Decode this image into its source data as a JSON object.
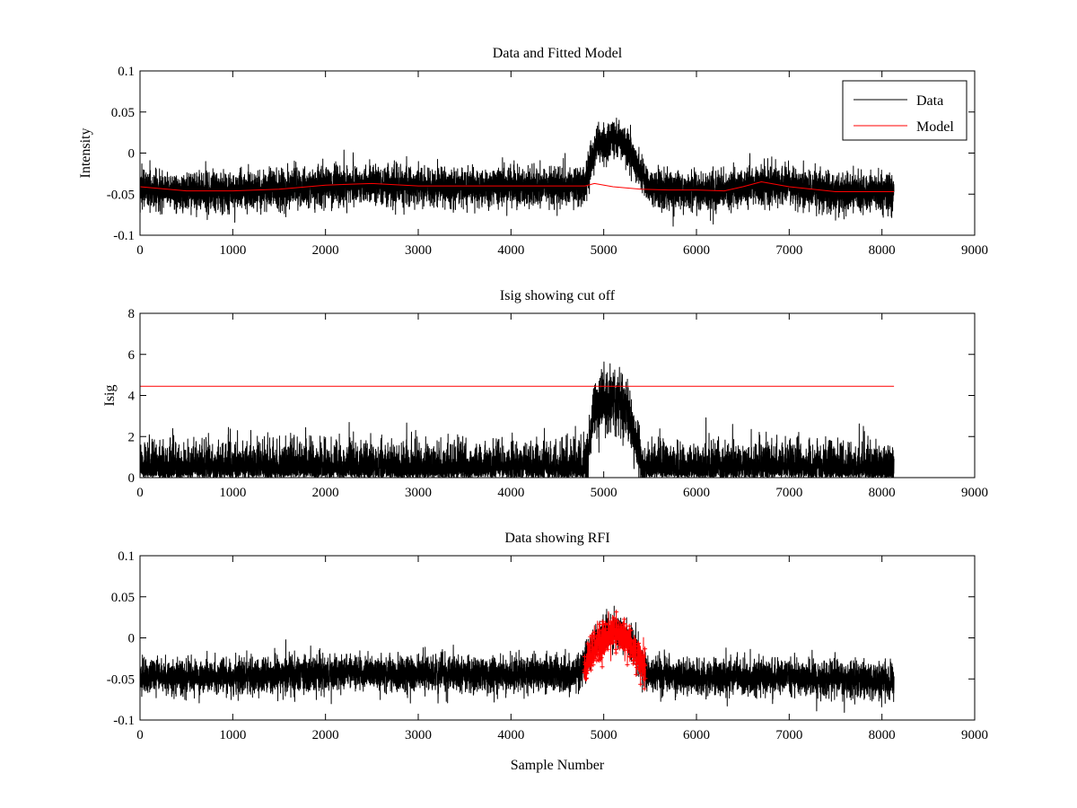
{
  "chart_data": [
    {
      "type": "line",
      "title": "Data and Fitted Model",
      "xlabel": "",
      "ylabel": "Intensity",
      "xlim": [
        0,
        9000
      ],
      "ylim": [
        -0.1,
        0.1
      ],
      "xticks": [
        0,
        1000,
        2000,
        3000,
        4000,
        5000,
        6000,
        7000,
        8000,
        9000
      ],
      "xtick_labels": [
        "0",
        "1000",
        "2000",
        "3000",
        "4000",
        "5000",
        "6000",
        "7000",
        "8000",
        "9000"
      ],
      "yticks": [
        -0.1,
        -0.05,
        0,
        0.05,
        0.1
      ],
      "ytick_labels": [
        "-0.1",
        "-0.05",
        "0",
        "0.05",
        "0.1"
      ],
      "grid": false,
      "legend": "top-right",
      "series": [
        {
          "name": "Data",
          "color": "#000000",
          "kind": "noisy-line",
          "x_range": [
            0,
            8130
          ],
          "n_points": 8130,
          "noise_sd": 0.0115,
          "baseline": {
            "x": [
              0,
              500,
              1000,
              1500,
              2000,
              2500,
              3000,
              3500,
              4000,
              4500,
              4800,
              5500,
              6000,
              6500,
              6700,
              7000,
              7500,
              8130
            ],
            "y": [
              -0.043,
              -0.047,
              -0.047,
              -0.044,
              -0.04,
              -0.038,
              -0.041,
              -0.041,
              -0.041,
              -0.041,
              -0.04,
              -0.043,
              -0.046,
              -0.044,
              -0.038,
              -0.041,
              -0.047,
              -0.047
            ]
          },
          "pulse": {
            "x": [
              4800,
              4880,
              4950,
              5050,
              5150,
              5250,
              5350,
              5450,
              5520
            ],
            "y": [
              0,
              0.04,
              0.052,
              0.056,
              0.058,
              0.05,
              0.03,
              0.01,
              0
            ]
          }
        },
        {
          "name": "Model",
          "color": "#ff0000",
          "kind": "line",
          "x": [
            0,
            500,
            1000,
            1500,
            2000,
            2500,
            3000,
            3500,
            4000,
            4500,
            4800,
            4900,
            5100,
            5400,
            5700,
            6000,
            6300,
            6500,
            6700,
            7000,
            7500,
            8130
          ],
          "y": [
            -0.041,
            -0.046,
            -0.046,
            -0.044,
            -0.039,
            -0.037,
            -0.04,
            -0.04,
            -0.04,
            -0.04,
            -0.04,
            -0.037,
            -0.041,
            -0.044,
            -0.045,
            -0.045,
            -0.046,
            -0.041,
            -0.035,
            -0.041,
            -0.047,
            -0.047
          ]
        }
      ]
    },
    {
      "type": "line",
      "title": "Isig showing cut off",
      "xlabel": "",
      "ylabel": "Isig",
      "xlim": [
        0,
        9000
      ],
      "ylim": [
        0,
        8
      ],
      "xticks": [
        0,
        1000,
        2000,
        3000,
        4000,
        5000,
        6000,
        7000,
        8000,
        9000
      ],
      "xtick_labels": [
        "0",
        "1000",
        "2000",
        "3000",
        "4000",
        "5000",
        "6000",
        "7000",
        "8000",
        "9000"
      ],
      "yticks": [
        0,
        2,
        4,
        6,
        8
      ],
      "ytick_labels": [
        "0",
        "2",
        "4",
        "6",
        "8"
      ],
      "grid": false,
      "series": [
        {
          "color": "#000000",
          "kind": "abs-noise",
          "x_range": [
            0,
            8130
          ],
          "n_points": 8130,
          "scale": 0.75,
          "pulse": {
            "x": [
              4800,
              4880,
              4950,
              5050,
              5150,
              5250,
              5350,
              5450
            ],
            "y": [
              0,
              2.9,
              3.5,
              3.7,
              3.8,
              3.2,
              1.6,
              0
            ]
          }
        },
        {
          "color": "#ff0000",
          "kind": "line",
          "x": [
            0,
            8130
          ],
          "y": [
            4.45,
            4.45
          ]
        }
      ]
    },
    {
      "type": "line",
      "title": "Data showing RFI",
      "xlabel": "Sample Number",
      "ylabel": "",
      "xlim": [
        0,
        9000
      ],
      "ylim": [
        -0.1,
        0.1
      ],
      "xticks": [
        0,
        1000,
        2000,
        3000,
        4000,
        5000,
        6000,
        7000,
        8000,
        9000
      ],
      "xtick_labels": [
        "0",
        "1000",
        "2000",
        "3000",
        "4000",
        "5000",
        "6000",
        "7000",
        "8000",
        "9000"
      ],
      "yticks": [
        -0.1,
        -0.05,
        0,
        0.05,
        0.1
      ],
      "ytick_labels": [
        "-0.1",
        "-0.05",
        "0",
        "0.05",
        "0.1"
      ],
      "grid": false,
      "series": [
        {
          "color": "#000000",
          "kind": "noisy-line",
          "x_range": [
            0,
            8130
          ],
          "n_points": 8130,
          "noise_sd": 0.0105,
          "baseline": {
            "x": [
              0,
              1000,
              2000,
              3000,
              4000,
              4700,
              5500,
              6000,
              7000,
              8130
            ],
            "y": [
              -0.047,
              -0.048,
              -0.042,
              -0.043,
              -0.045,
              -0.045,
              -0.045,
              -0.048,
              -0.048,
              -0.053
            ]
          },
          "pulse": {
            "x": [
              4750,
              4850,
              4950,
              5050,
              5150,
              5250,
              5350,
              5450
            ],
            "y": [
              0,
              0.032,
              0.045,
              0.05,
              0.052,
              0.046,
              0.03,
              0.0
            ]
          }
        },
        {
          "color": "#ff0000",
          "kind": "marked-segment",
          "marker": "+",
          "x_range": [
            4790,
            5450
          ],
          "n_points": 560,
          "noise_sd": 0.011,
          "baseline": {
            "x": [
              4790,
              4850,
              4950,
              5050,
              5150,
              5250,
              5350,
              5450
            ],
            "y": [
              -0.042,
              -0.02,
              -0.005,
              0.002,
              0.005,
              0.0,
              -0.02,
              -0.035
            ]
          }
        }
      ]
    }
  ]
}
